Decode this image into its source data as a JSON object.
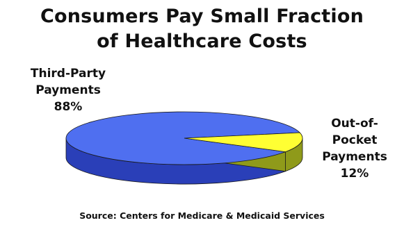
{
  "title": {
    "line1": "Consumers Pay Small Fraction",
    "line2": "of Healthcare Costs"
  },
  "source": "Source: Centers for Medicare & Medicaid Services",
  "colors": {
    "third_party_top": "#4f6ff0",
    "third_party_side": "#2a3fb8",
    "out_of_pocket_top": "#ffff33",
    "out_of_pocket_side": "#8f9a1a"
  },
  "chart_data": {
    "type": "pie",
    "style": "3d",
    "title": "Consumers Pay Small Fraction of Healthcare Costs",
    "slices": [
      {
        "label_lines": [
          "Third-Party",
          "Payments"
        ],
        "percent_label": "88%",
        "value": 88
      },
      {
        "label_lines": [
          "Out-of-",
          "Pocket",
          "Payments"
        ],
        "percent_label": "12%",
        "value": 12
      }
    ]
  }
}
